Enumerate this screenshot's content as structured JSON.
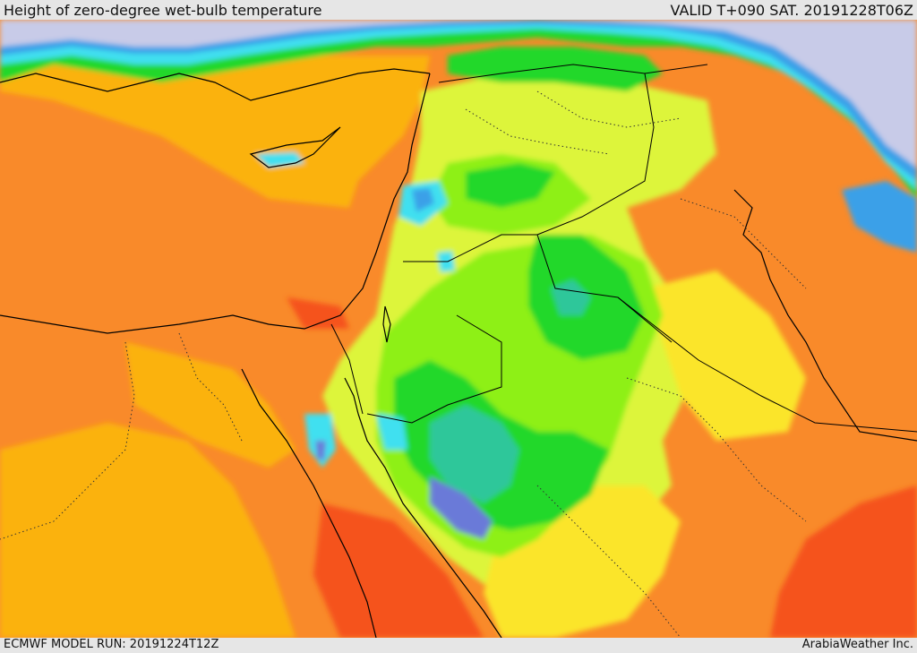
{
  "header": {
    "title": "Height of zero-degree wet-bulb temperature",
    "valid": "VALID T+090 SAT. 20191228T06Z"
  },
  "footer": {
    "model_run": "ECMWF MODEL RUN: 20191224T12Z",
    "credit": "ArabiaWeather Inc."
  },
  "map": {
    "field": "zero-degree wet-bulb temperature height",
    "region": "Eastern Mediterranean and Middle East",
    "colors": {
      "lowest": "#c8cbe8",
      "very_low": "#6a7ad8",
      "low_blue": "#3aa0e8",
      "cyan": "#3fe0f0",
      "teal": "#2ec79a",
      "green": "#22d82a",
      "light_green": "#8ef018",
      "yellow_green": "#ddf53a",
      "yellow": "#fbe52c",
      "amber": "#fbb20a",
      "orange": "#f98a2a",
      "red_orange": "#f5521a"
    },
    "lines": {
      "coastline": "#000000",
      "borders": "#000000",
      "admin_dotted": "#333333"
    }
  }
}
